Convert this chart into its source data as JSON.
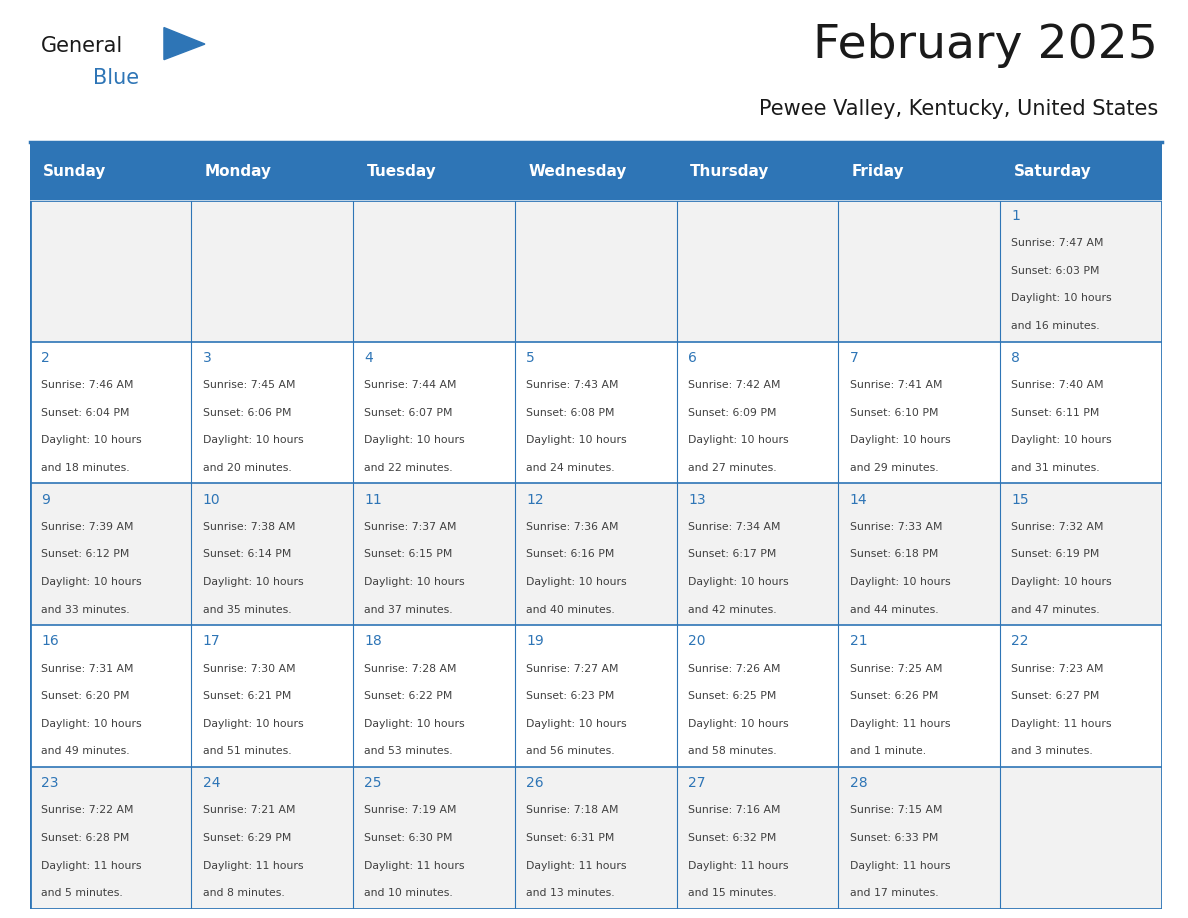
{
  "title": "February 2025",
  "subtitle": "Pewee Valley, Kentucky, United States",
  "days_of_week": [
    "Sunday",
    "Monday",
    "Tuesday",
    "Wednesday",
    "Thursday",
    "Friday",
    "Saturday"
  ],
  "header_bg": "#2E75B6",
  "header_text": "#FFFFFF",
  "cell_bg_odd": "#F2F2F2",
  "cell_bg_even": "#FFFFFF",
  "border_color": "#2E75B6",
  "day_num_color": "#2E75B6",
  "text_color": "#404040",
  "calendar": [
    [
      null,
      null,
      null,
      null,
      null,
      null,
      1
    ],
    [
      2,
      3,
      4,
      5,
      6,
      7,
      8
    ],
    [
      9,
      10,
      11,
      12,
      13,
      14,
      15
    ],
    [
      16,
      17,
      18,
      19,
      20,
      21,
      22
    ],
    [
      23,
      24,
      25,
      26,
      27,
      28,
      null
    ]
  ],
  "day_data": {
    "1": {
      "sunrise": "7:47 AM",
      "sunset": "6:03 PM",
      "daylight_line1": "Daylight: 10 hours",
      "daylight_line2": "and 16 minutes."
    },
    "2": {
      "sunrise": "7:46 AM",
      "sunset": "6:04 PM",
      "daylight_line1": "Daylight: 10 hours",
      "daylight_line2": "and 18 minutes."
    },
    "3": {
      "sunrise": "7:45 AM",
      "sunset": "6:06 PM",
      "daylight_line1": "Daylight: 10 hours",
      "daylight_line2": "and 20 minutes."
    },
    "4": {
      "sunrise": "7:44 AM",
      "sunset": "6:07 PM",
      "daylight_line1": "Daylight: 10 hours",
      "daylight_line2": "and 22 minutes."
    },
    "5": {
      "sunrise": "7:43 AM",
      "sunset": "6:08 PM",
      "daylight_line1": "Daylight: 10 hours",
      "daylight_line2": "and 24 minutes."
    },
    "6": {
      "sunrise": "7:42 AM",
      "sunset": "6:09 PM",
      "daylight_line1": "Daylight: 10 hours",
      "daylight_line2": "and 27 minutes."
    },
    "7": {
      "sunrise": "7:41 AM",
      "sunset": "6:10 PM",
      "daylight_line1": "Daylight: 10 hours",
      "daylight_line2": "and 29 minutes."
    },
    "8": {
      "sunrise": "7:40 AM",
      "sunset": "6:11 PM",
      "daylight_line1": "Daylight: 10 hours",
      "daylight_line2": "and 31 minutes."
    },
    "9": {
      "sunrise": "7:39 AM",
      "sunset": "6:12 PM",
      "daylight_line1": "Daylight: 10 hours",
      "daylight_line2": "and 33 minutes."
    },
    "10": {
      "sunrise": "7:38 AM",
      "sunset": "6:14 PM",
      "daylight_line1": "Daylight: 10 hours",
      "daylight_line2": "and 35 minutes."
    },
    "11": {
      "sunrise": "7:37 AM",
      "sunset": "6:15 PM",
      "daylight_line1": "Daylight: 10 hours",
      "daylight_line2": "and 37 minutes."
    },
    "12": {
      "sunrise": "7:36 AM",
      "sunset": "6:16 PM",
      "daylight_line1": "Daylight: 10 hours",
      "daylight_line2": "and 40 minutes."
    },
    "13": {
      "sunrise": "7:34 AM",
      "sunset": "6:17 PM",
      "daylight_line1": "Daylight: 10 hours",
      "daylight_line2": "and 42 minutes."
    },
    "14": {
      "sunrise": "7:33 AM",
      "sunset": "6:18 PM",
      "daylight_line1": "Daylight: 10 hours",
      "daylight_line2": "and 44 minutes."
    },
    "15": {
      "sunrise": "7:32 AM",
      "sunset": "6:19 PM",
      "daylight_line1": "Daylight: 10 hours",
      "daylight_line2": "and 47 minutes."
    },
    "16": {
      "sunrise": "7:31 AM",
      "sunset": "6:20 PM",
      "daylight_line1": "Daylight: 10 hours",
      "daylight_line2": "and 49 minutes."
    },
    "17": {
      "sunrise": "7:30 AM",
      "sunset": "6:21 PM",
      "daylight_line1": "Daylight: 10 hours",
      "daylight_line2": "and 51 minutes."
    },
    "18": {
      "sunrise": "7:28 AM",
      "sunset": "6:22 PM",
      "daylight_line1": "Daylight: 10 hours",
      "daylight_line2": "and 53 minutes."
    },
    "19": {
      "sunrise": "7:27 AM",
      "sunset": "6:23 PM",
      "daylight_line1": "Daylight: 10 hours",
      "daylight_line2": "and 56 minutes."
    },
    "20": {
      "sunrise": "7:26 AM",
      "sunset": "6:25 PM",
      "daylight_line1": "Daylight: 10 hours",
      "daylight_line2": "and 58 minutes."
    },
    "21": {
      "sunrise": "7:25 AM",
      "sunset": "6:26 PM",
      "daylight_line1": "Daylight: 11 hours",
      "daylight_line2": "and 1 minute."
    },
    "22": {
      "sunrise": "7:23 AM",
      "sunset": "6:27 PM",
      "daylight_line1": "Daylight: 11 hours",
      "daylight_line2": "and 3 minutes."
    },
    "23": {
      "sunrise": "7:22 AM",
      "sunset": "6:28 PM",
      "daylight_line1": "Daylight: 11 hours",
      "daylight_line2": "and 5 minutes."
    },
    "24": {
      "sunrise": "7:21 AM",
      "sunset": "6:29 PM",
      "daylight_line1": "Daylight: 11 hours",
      "daylight_line2": "and 8 minutes."
    },
    "25": {
      "sunrise": "7:19 AM",
      "sunset": "6:30 PM",
      "daylight_line1": "Daylight: 11 hours",
      "daylight_line2": "and 10 minutes."
    },
    "26": {
      "sunrise": "7:18 AM",
      "sunset": "6:31 PM",
      "daylight_line1": "Daylight: 11 hours",
      "daylight_line2": "and 13 minutes."
    },
    "27": {
      "sunrise": "7:16 AM",
      "sunset": "6:32 PM",
      "daylight_line1": "Daylight: 11 hours",
      "daylight_line2": "and 15 minutes."
    },
    "28": {
      "sunrise": "7:15 AM",
      "sunset": "6:33 PM",
      "daylight_line1": "Daylight: 11 hours",
      "daylight_line2": "and 17 minutes."
    }
  },
  "title_fontsize": 34,
  "subtitle_fontsize": 15,
  "header_fontsize": 11,
  "day_num_fontsize": 10,
  "cell_fontsize": 7.8
}
